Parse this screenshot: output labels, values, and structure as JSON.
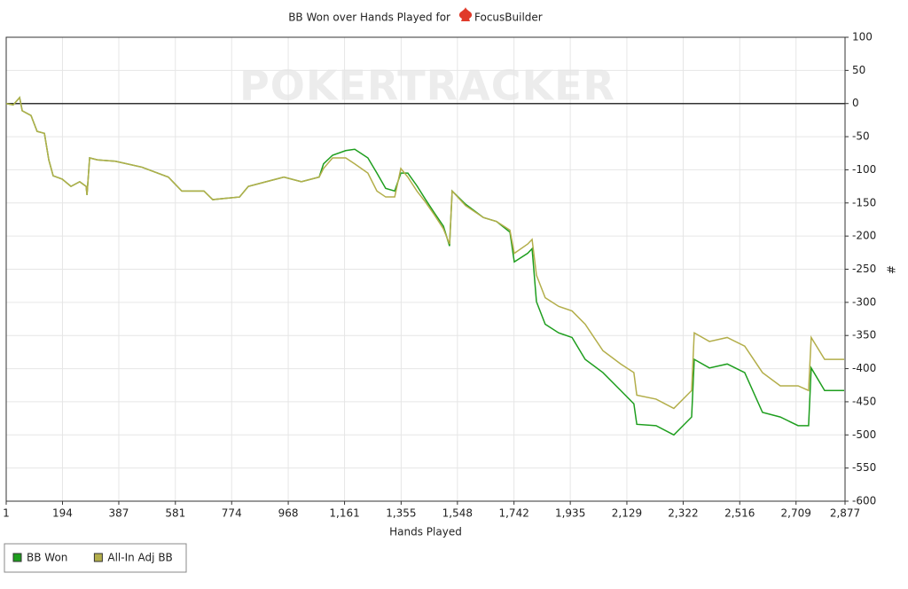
{
  "chart_data": {
    "type": "line",
    "title": "BB Won over Hands Played for",
    "player": "FocusBuilder",
    "watermark": "POKERTRACKER",
    "x_label": "Hands Played",
    "y_label": "#",
    "x": [
      1,
      25,
      47,
      56,
      86,
      107,
      132,
      147,
      162,
      193,
      223,
      253,
      275,
      278,
      287,
      314,
      375,
      466,
      557,
      603,
      679,
      709,
      801,
      831,
      892,
      953,
      1013,
      1074,
      1089,
      1120,
      1165,
      1196,
      1241,
      1272,
      1302,
      1333,
      1354,
      1378,
      1409,
      1439,
      1469,
      1500,
      1521,
      1530,
      1576,
      1637,
      1682,
      1728,
      1743,
      1789,
      1804,
      1819,
      1849,
      1895,
      1941,
      1986,
      2047,
      2108,
      2153,
      2163,
      2229,
      2290,
      2351,
      2360,
      2412,
      2473,
      2533,
      2594,
      2655,
      2716,
      2752,
      2761,
      2807,
      2874
    ],
    "series": [
      {
        "name": "BB Won",
        "color": "#1e9e1e",
        "values": [
          0,
          -2,
          9,
          -11,
          -18,
          -42,
          -45,
          -85,
          -109,
          -114,
          -125,
          -118,
          -125,
          -138,
          -82,
          -85,
          -87,
          -96,
          -111,
          -132,
          -132,
          -145,
          -141,
          -125,
          -118,
          -111,
          -118,
          -111,
          -91,
          -78,
          -71,
          -69,
          -82,
          -105,
          -128,
          -132,
          -105,
          -105,
          -124,
          -145,
          -165,
          -185,
          -215,
          -132,
          -152,
          -172,
          -178,
          -194,
          -239,
          -226,
          -219,
          -299,
          -333,
          -346,
          -353,
          -386,
          -406,
          -433,
          -453,
          -484,
          -486,
          -500,
          -473,
          -386,
          -399,
          -393,
          -406,
          -466,
          -473,
          -486,
          -486,
          -399,
          -433,
          -433
        ]
      },
      {
        "name": "All-In Adj BB",
        "color": "#b3ae4a",
        "values": [
          0,
          -2,
          9,
          -11,
          -18,
          -42,
          -45,
          -85,
          -109,
          -114,
          -125,
          -118,
          -125,
          -138,
          -82,
          -85,
          -87,
          -96,
          -111,
          -132,
          -132,
          -145,
          -141,
          -125,
          -118,
          -111,
          -118,
          -111,
          -98,
          -82,
          -82,
          -91,
          -105,
          -132,
          -141,
          -141,
          -98,
          -111,
          -132,
          -149,
          -168,
          -189,
          -212,
          -132,
          -154,
          -172,
          -178,
          -191,
          -226,
          -212,
          -205,
          -259,
          -293,
          -306,
          -313,
          -333,
          -373,
          -393,
          -406,
          -440,
          -446,
          -460,
          -433,
          -346,
          -359,
          -353,
          -366,
          -406,
          -426,
          -426,
          -433,
          -353,
          -386,
          -386
        ]
      }
    ],
    "xlim": [
      1,
      2877
    ],
    "xticks": [
      1,
      194,
      387,
      581,
      774,
      968,
      {
        "value": 1161,
        "label": "1,161"
      },
      {
        "value": 1355,
        "label": "1,355"
      },
      {
        "value": 1548,
        "label": "1,548"
      },
      {
        "value": 1742,
        "label": "1,742"
      },
      {
        "value": 1935,
        "label": "1,935"
      },
      {
        "value": 2129,
        "label": "2,129"
      },
      {
        "value": 2322,
        "label": "2,322"
      },
      {
        "value": 2516,
        "label": "2,516"
      },
      {
        "value": 2709,
        "label": "2,709"
      },
      {
        "value": 2877,
        "label": "2,877"
      }
    ],
    "ylim": [
      -600,
      100
    ],
    "yticks": [
      100,
      50,
      0,
      -50,
      -100,
      -150,
      -200,
      -250,
      -300,
      -350,
      -400,
      -450,
      -500,
      -550,
      -600
    ],
    "grid": true
  }
}
